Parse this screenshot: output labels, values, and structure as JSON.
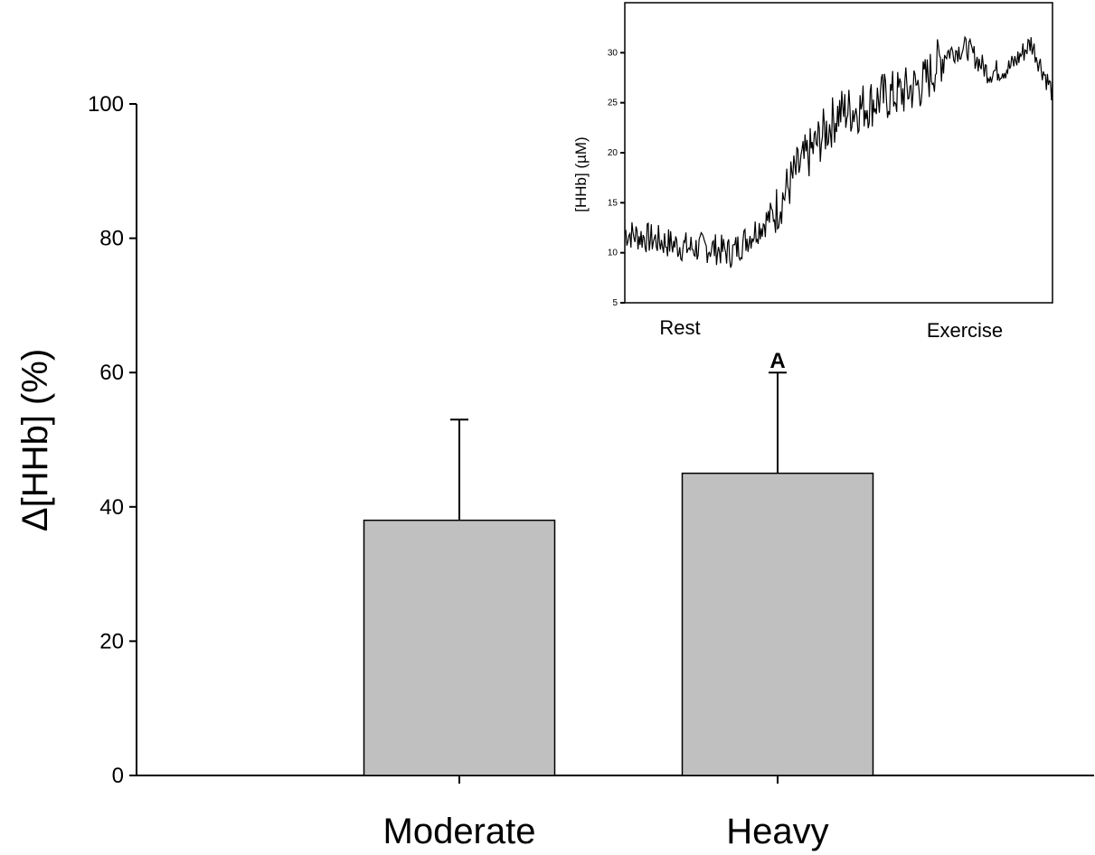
{
  "chart_data": [
    {
      "type": "bar",
      "categories": [
        "Moderate",
        "Heavy"
      ],
      "values": [
        38,
        45
      ],
      "error_upper": [
        53,
        60
      ],
      "annotations": [
        {
          "category": "Heavy",
          "text": "A"
        }
      ],
      "ylabel": "Δ[HHb] (%)",
      "ylim": [
        0,
        100
      ],
      "yticks": [
        "0",
        "20",
        "40",
        "60",
        "80",
        "100"
      ],
      "colors": {
        "bar_fill": "#c0c0c0",
        "stroke": "#000000"
      }
    },
    {
      "type": "line",
      "ylabel": "[HHb] (µM)",
      "ylim": [
        5,
        35
      ],
      "yticks": [
        "5",
        "10",
        "15",
        "20",
        "25",
        "30"
      ],
      "x_labels": [
        "Rest",
        "Exercise"
      ],
      "x": [
        0,
        0.05,
        0.1,
        0.15,
        0.2,
        0.25,
        0.3,
        0.35,
        0.4,
        0.45,
        0.5,
        0.55,
        0.6,
        0.65,
        0.7,
        0.75,
        0.8,
        0.85,
        0.9,
        0.95,
        1.0
      ],
      "y": [
        12,
        11.5,
        11,
        10.5,
        10.5,
        10,
        12,
        14,
        18,
        21,
        24,
        24.5,
        25.5,
        26,
        27,
        30,
        30.5,
        28,
        28.5,
        31,
        26
      ]
    }
  ]
}
